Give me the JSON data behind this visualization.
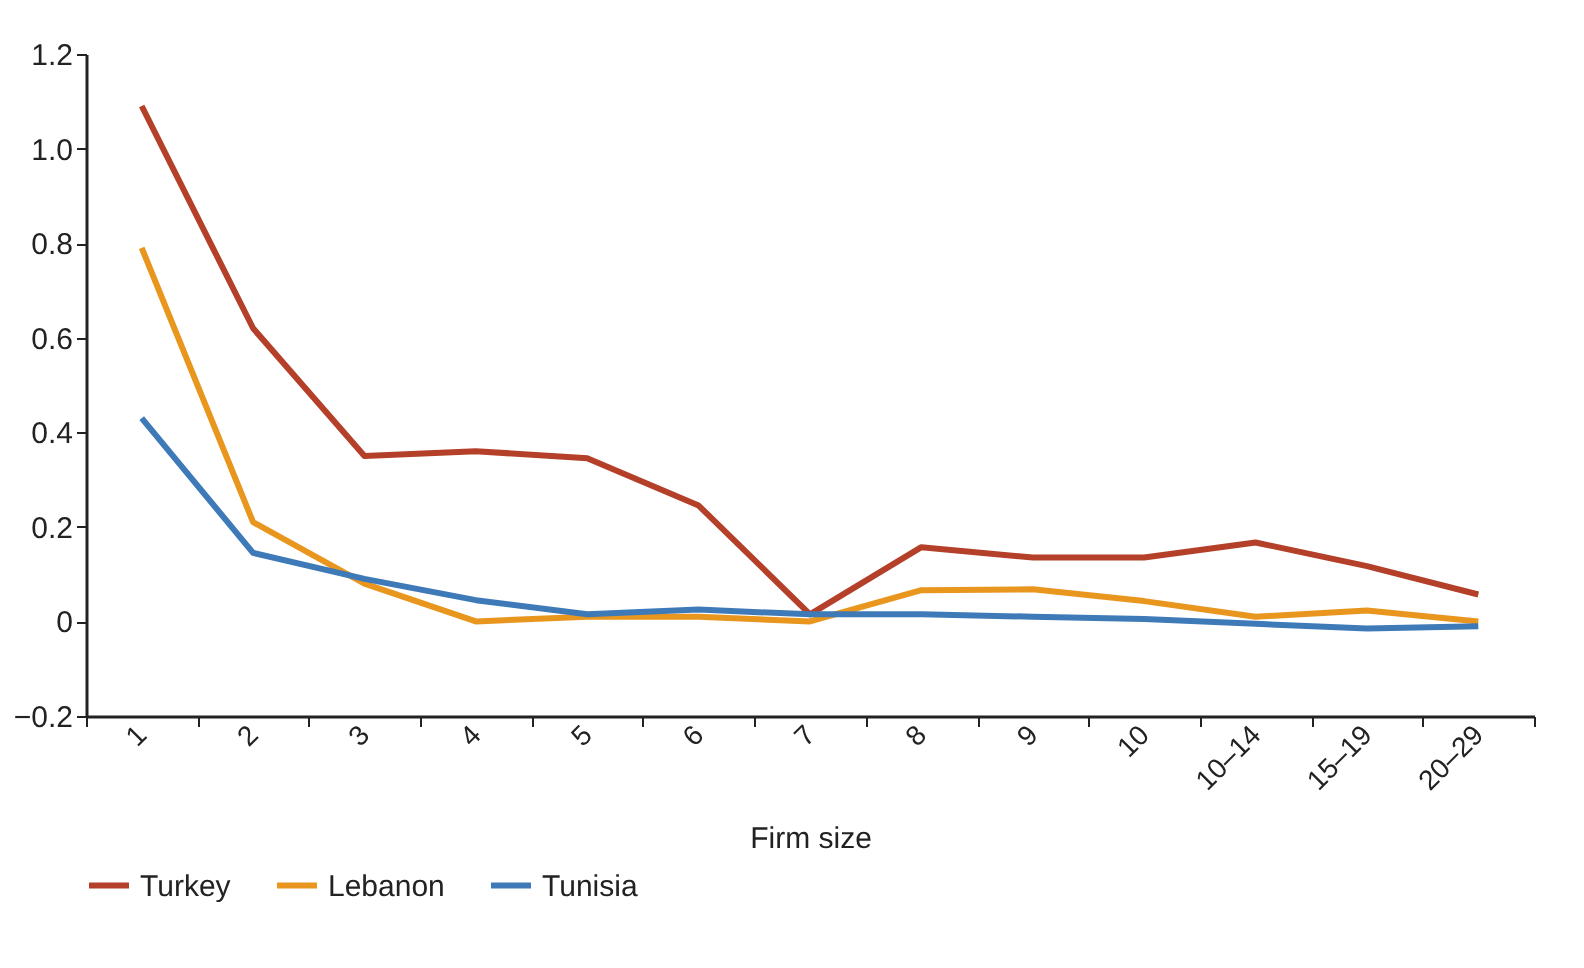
{
  "chart_data": {
    "type": "line",
    "xlabel": "Firm size",
    "categories": [
      "1",
      "2",
      "3",
      "4",
      "5",
      "6",
      "7",
      "8",
      "9",
      "10",
      "10–14",
      "15–19",
      "20–29"
    ],
    "series": [
      {
        "name": "Turkey",
        "color": "#b5402a",
        "values": [
          1.09,
          0.62,
          0.35,
          0.36,
          0.345,
          0.245,
          0.015,
          0.157,
          0.135,
          0.135,
          0.167,
          0.117,
          0.057
        ]
      },
      {
        "name": "Lebanon",
        "color": "#e8961e",
        "values": [
          0.79,
          0.21,
          0.08,
          0.0,
          0.01,
          0.01,
          0.0,
          0.066,
          0.068,
          0.043,
          0.01,
          0.023,
          0.0
        ]
      },
      {
        "name": "Tunisia",
        "color": "#3f7ab8",
        "values": [
          0.43,
          0.145,
          0.09,
          0.045,
          0.015,
          0.025,
          0.015,
          0.015,
          0.01,
          0.005,
          -0.005,
          -0.015,
          -0.01
        ]
      }
    ],
    "ylim": [
      -0.2,
      1.2
    ],
    "yticks": [
      {
        "value": -0.2,
        "label": "−0.2"
      },
      0,
      0.2,
      0.4,
      0.6,
      0.8,
      {
        "value": 1.0,
        "label": "1.0"
      },
      1.2
    ],
    "grid": false,
    "legend": "bottom"
  }
}
